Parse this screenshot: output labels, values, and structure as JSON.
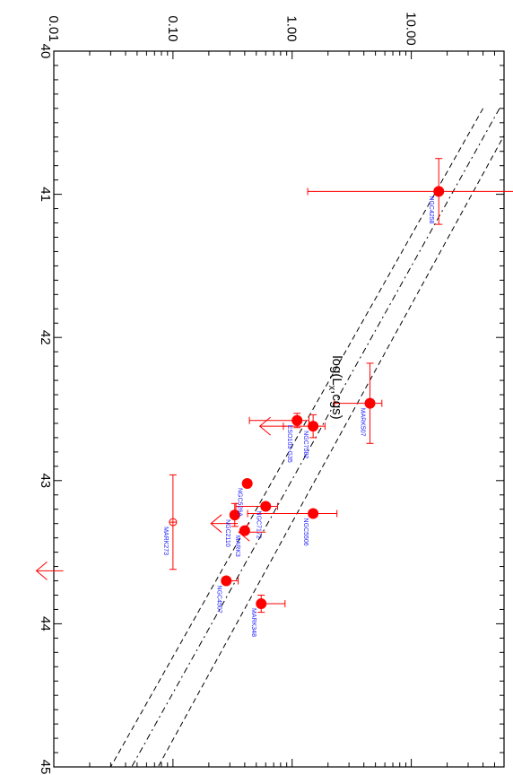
{
  "chart_data": {
    "type": "scatter",
    "orientation": "rotated-90",
    "xlabel": "log(L",
    "xlabel_sub": "x",
    "xlabel_suffix": ",cgs)",
    "ylabel": "",
    "xlim": [
      40,
      45
    ],
    "ylog": true,
    "ylim": [
      0.01,
      60
    ],
    "x_ticks": [
      {
        "value": 40,
        "label": "40"
      },
      {
        "value": 41,
        "label": "41"
      },
      {
        "value": 42,
        "label": "42"
      },
      {
        "value": 43,
        "label": "43"
      },
      {
        "value": 44,
        "label": "44"
      },
      {
        "value": 45,
        "label": "45"
      }
    ],
    "y_ticks": [
      {
        "value": 0.01,
        "label": "0.01"
      },
      {
        "value": 0.1,
        "label": "0.10"
      },
      {
        "value": 1,
        "label": "1.00"
      },
      {
        "value": 10,
        "label": "10.00"
      }
    ],
    "colors": {
      "points": "#ff0000",
      "labels": "#1a1aff",
      "lines": "#000000"
    },
    "points": [
      {
        "name": "NGC4258",
        "x": 40.98,
        "y": 17.0,
        "xerr": [
          0.23,
          0.23
        ],
        "yerr": [
          1.1,
          1.55
        ],
        "symbol": "filled"
      },
      {
        "name": "MARK507",
        "x": 42.46,
        "y": 4.5,
        "xerr": [
          0.28,
          0.28
        ],
        "yerr": [
          0.3,
          0.1
        ],
        "symbol": "filled"
      },
      {
        "name": "NGC7582",
        "x": 42.62,
        "y": 1.5,
        "xerr": [
          0.08,
          0.08
        ],
        "yerr": [
          0.25,
          0.1
        ],
        "symbol": "filled"
      },
      {
        "name": "ESO103-G35",
        "x": 42.58,
        "y": 1.1,
        "xerr": [
          0.05,
          0.05
        ],
        "yerr": [
          0.4,
          0.1
        ],
        "symbol": "filled"
      },
      {
        "name": "NGC5506",
        "x": 43.23,
        "y": 1.5,
        "xerr": [
          0.0,
          0.0
        ],
        "yerr": [
          0.55,
          0.2
        ],
        "symbol": "filled"
      },
      {
        "name": "NGC526A",
        "x": 43.02,
        "y": 0.42,
        "xerr": [
          0.0,
          0.0
        ],
        "yerr": [
          0.0,
          0.0
        ],
        "symbol": "filled"
      },
      {
        "name": "NGC7172",
        "x": 43.18,
        "y": 0.6,
        "xerr": [
          0.0,
          0.0
        ],
        "yerr": [
          0.25,
          0.1
        ],
        "symbol": "filled"
      },
      {
        "name": "NGC2110",
        "x": 43.24,
        "y": 0.33,
        "xerr": [
          0.08,
          0.08
        ],
        "yerr": [
          0.0,
          0.0
        ],
        "symbol": "filled"
      },
      {
        "name": "MARK3",
        "x": 43.35,
        "y": 0.4,
        "xerr": [
          0.0,
          0.0
        ],
        "yerr": [
          0.0,
          0.0
        ],
        "symbol": "filled"
      },
      {
        "name": "NGC4507",
        "x": 43.7,
        "y": 0.28,
        "xerr": [
          0.0,
          0.0
        ],
        "yerr": [
          0.0,
          0.1
        ],
        "symbol": "filled"
      },
      {
        "name": "MARK348",
        "x": 43.86,
        "y": 0.55,
        "xerr": [
          0.06,
          0.06
        ],
        "yerr": [
          0.0,
          0.2
        ],
        "symbol": "filled"
      },
      {
        "name": "MARK273",
        "x": 43.29,
        "y": 0.1,
        "xerr": [
          0.33,
          0.33
        ],
        "yerr": [
          0.0,
          0.0
        ],
        "symbol": "open"
      }
    ],
    "upper_limits": [
      {
        "x": 42.62,
        "y": 0.9
      },
      {
        "x": 43.3,
        "y": 0.35
      },
      {
        "x": 43.36,
        "y": 0.6
      },
      {
        "x": 43.63,
        "y": 0.012
      }
    ],
    "lines": [
      {
        "style": "dashdot",
        "from": {
          "x": 40.4,
          "y": 55
        },
        "to": {
          "x": 45.0,
          "y": 0.045
        }
      },
      {
        "style": "dashed",
        "from": {
          "x": 40.4,
          "y": 40
        },
        "to": {
          "x": 45.0,
          "y": 0.03
        }
      },
      {
        "style": "dashed",
        "from": {
          "x": 40.4,
          "y": 80
        },
        "to": {
          "x": 45.0,
          "y": 0.075
        }
      }
    ]
  }
}
